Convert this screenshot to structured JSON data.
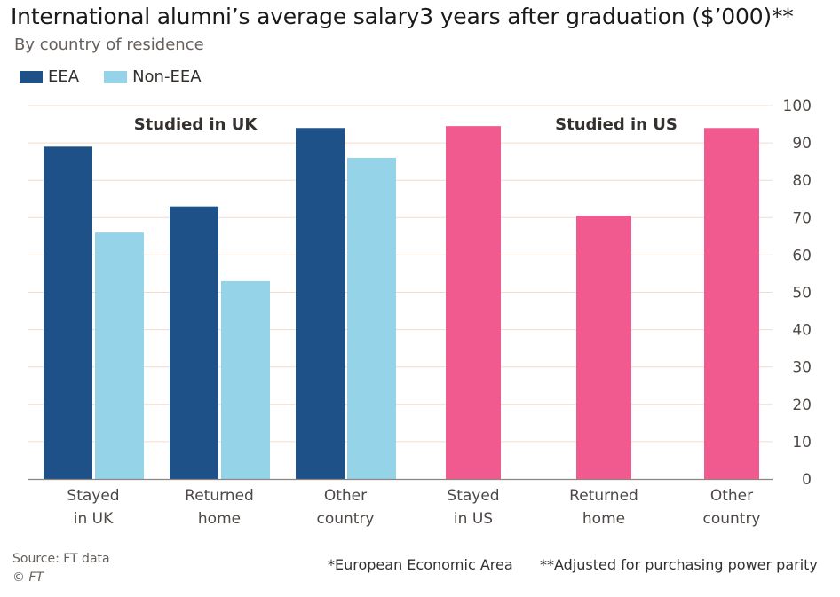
{
  "chart_data": {
    "type": "bar",
    "title": "International alumni’s average salary3 years after graduation ($’000)**",
    "subtitle": "By country of residence",
    "ylim": [
      0,
      100
    ],
    "yticks": [
      0,
      10,
      20,
      30,
      40,
      50,
      60,
      70,
      80,
      90,
      100
    ],
    "legend": [
      {
        "name": "EEA",
        "color": "#1f5189"
      },
      {
        "name": "Non-EEA",
        "color": "#94d3e8"
      }
    ],
    "groups": [
      {
        "label": "Studied in UK",
        "categories": [
          {
            "label": [
              "Stayed",
              "in UK"
            ],
            "values": [
              {
                "series": "EEA",
                "value": 89
              },
              {
                "series": "Non-EEA",
                "value": 66
              }
            ]
          },
          {
            "label": [
              "Returned",
              "home"
            ],
            "values": [
              {
                "series": "EEA",
                "value": 73
              },
              {
                "series": "Non-EEA",
                "value": 53
              }
            ]
          },
          {
            "label": [
              "Other",
              "country"
            ],
            "values": [
              {
                "series": "EEA",
                "value": 94
              },
              {
                "series": "Non-EEA",
                "value": 86
              }
            ]
          }
        ]
      },
      {
        "label": "Studied in US",
        "color": "#f05a8f",
        "categories": [
          {
            "label": [
              "Stayed",
              "in US"
            ],
            "value": 94.5
          },
          {
            "label": [
              "Returned",
              "home"
            ],
            "value": 70.5
          },
          {
            "label": [
              "Other",
              "country"
            ],
            "value": 94
          }
        ]
      }
    ]
  },
  "footer": {
    "source": "Source: FT data",
    "copyright": "© FT",
    "footnote_eea": "*European Economic Area",
    "footnote_ppp": "**Adjusted for purchasing power parity"
  },
  "colors": {
    "gridline": "#f0dccd",
    "axis": "#8c8580",
    "tick_text": "#4d4845"
  }
}
